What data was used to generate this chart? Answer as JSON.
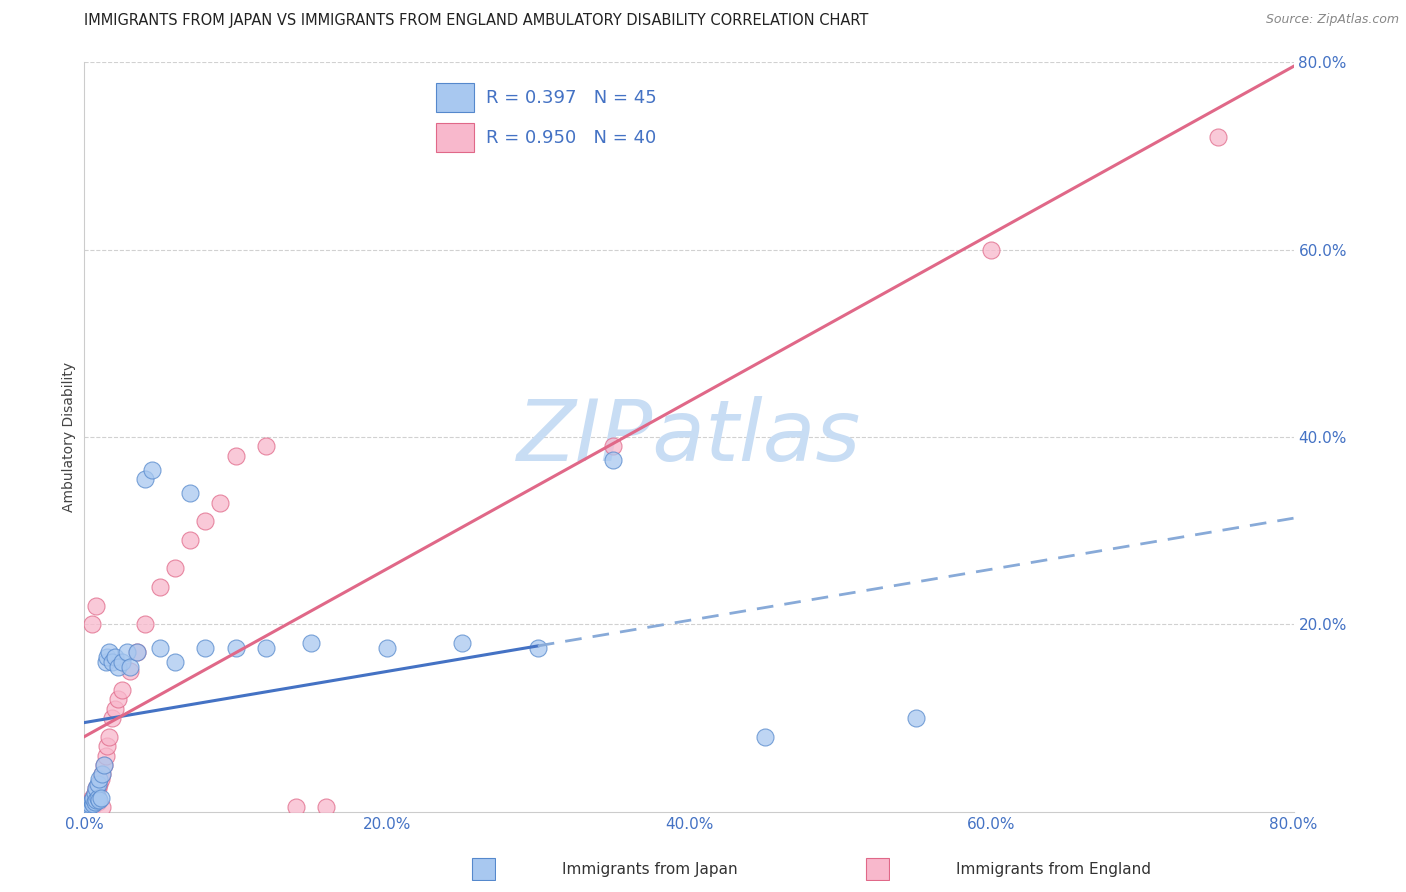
{
  "title": "IMMIGRANTS FROM JAPAN VS IMMIGRANTS FROM ENGLAND AMBULATORY DISABILITY CORRELATION CHART",
  "source": "Source: ZipAtlas.com",
  "ylabel": "Ambulatory Disability",
  "xlim": [
    0.0,
    0.8
  ],
  "ylim": [
    0.0,
    0.8
  ],
  "xtick_vals": [
    0.0,
    0.2,
    0.4,
    0.6,
    0.8
  ],
  "ytick_vals": [
    0.2,
    0.4,
    0.6,
    0.8
  ],
  "japan_R": "0.397",
  "japan_N": "45",
  "england_R": "0.950",
  "england_N": "40",
  "japan_face": "#a8c8f0",
  "japan_edge": "#5588cc",
  "england_face": "#f8b8cc",
  "england_edge": "#e06888",
  "japan_line": "#4472c4",
  "england_line": "#e06888",
  "tick_color": "#4472c4",
  "watermark_color": "#c8ddf4",
  "title_color": "#222222",
  "source_color": "#888888",
  "grid_color": "#cccccc",
  "japan_scatter_x": [
    0.001,
    0.002,
    0.003,
    0.003,
    0.004,
    0.005,
    0.005,
    0.006,
    0.006,
    0.007,
    0.007,
    0.008,
    0.008,
    0.009,
    0.009,
    0.01,
    0.01,
    0.011,
    0.012,
    0.013,
    0.014,
    0.015,
    0.016,
    0.018,
    0.02,
    0.022,
    0.025,
    0.028,
    0.03,
    0.035,
    0.04,
    0.045,
    0.05,
    0.06,
    0.07,
    0.08,
    0.1,
    0.12,
    0.15,
    0.2,
    0.25,
    0.3,
    0.35,
    0.45,
    0.55
  ],
  "japan_scatter_y": [
    0.002,
    0.004,
    0.005,
    0.007,
    0.008,
    0.01,
    0.012,
    0.008,
    0.015,
    0.01,
    0.02,
    0.012,
    0.025,
    0.015,
    0.03,
    0.012,
    0.035,
    0.015,
    0.04,
    0.05,
    0.16,
    0.165,
    0.17,
    0.16,
    0.165,
    0.155,
    0.16,
    0.17,
    0.155,
    0.17,
    0.355,
    0.365,
    0.175,
    0.16,
    0.34,
    0.175,
    0.175,
    0.175,
    0.18,
    0.175,
    0.18,
    0.175,
    0.375,
    0.08,
    0.1
  ],
  "england_scatter_x": [
    0.002,
    0.003,
    0.004,
    0.005,
    0.005,
    0.006,
    0.007,
    0.007,
    0.008,
    0.009,
    0.009,
    0.01,
    0.011,
    0.012,
    0.013,
    0.014,
    0.015,
    0.016,
    0.018,
    0.02,
    0.022,
    0.025,
    0.03,
    0.035,
    0.04,
    0.05,
    0.06,
    0.07,
    0.08,
    0.09,
    0.1,
    0.12,
    0.14,
    0.16,
    0.35,
    0.6,
    0.75,
    0.005,
    0.008,
    0.012
  ],
  "england_scatter_y": [
    0.005,
    0.008,
    0.01,
    0.005,
    0.015,
    0.01,
    0.015,
    0.02,
    0.025,
    0.01,
    0.025,
    0.03,
    0.035,
    0.04,
    0.05,
    0.06,
    0.07,
    0.08,
    0.1,
    0.11,
    0.12,
    0.13,
    0.15,
    0.17,
    0.2,
    0.24,
    0.26,
    0.29,
    0.31,
    0.33,
    0.38,
    0.39,
    0.005,
    0.005,
    0.39,
    0.6,
    0.72,
    0.2,
    0.22,
    0.005
  ],
  "england_line_slope": 0.96,
  "england_line_intercept": -0.01,
  "japan_line_slope": 0.42,
  "japan_line_intercept": 0.04
}
